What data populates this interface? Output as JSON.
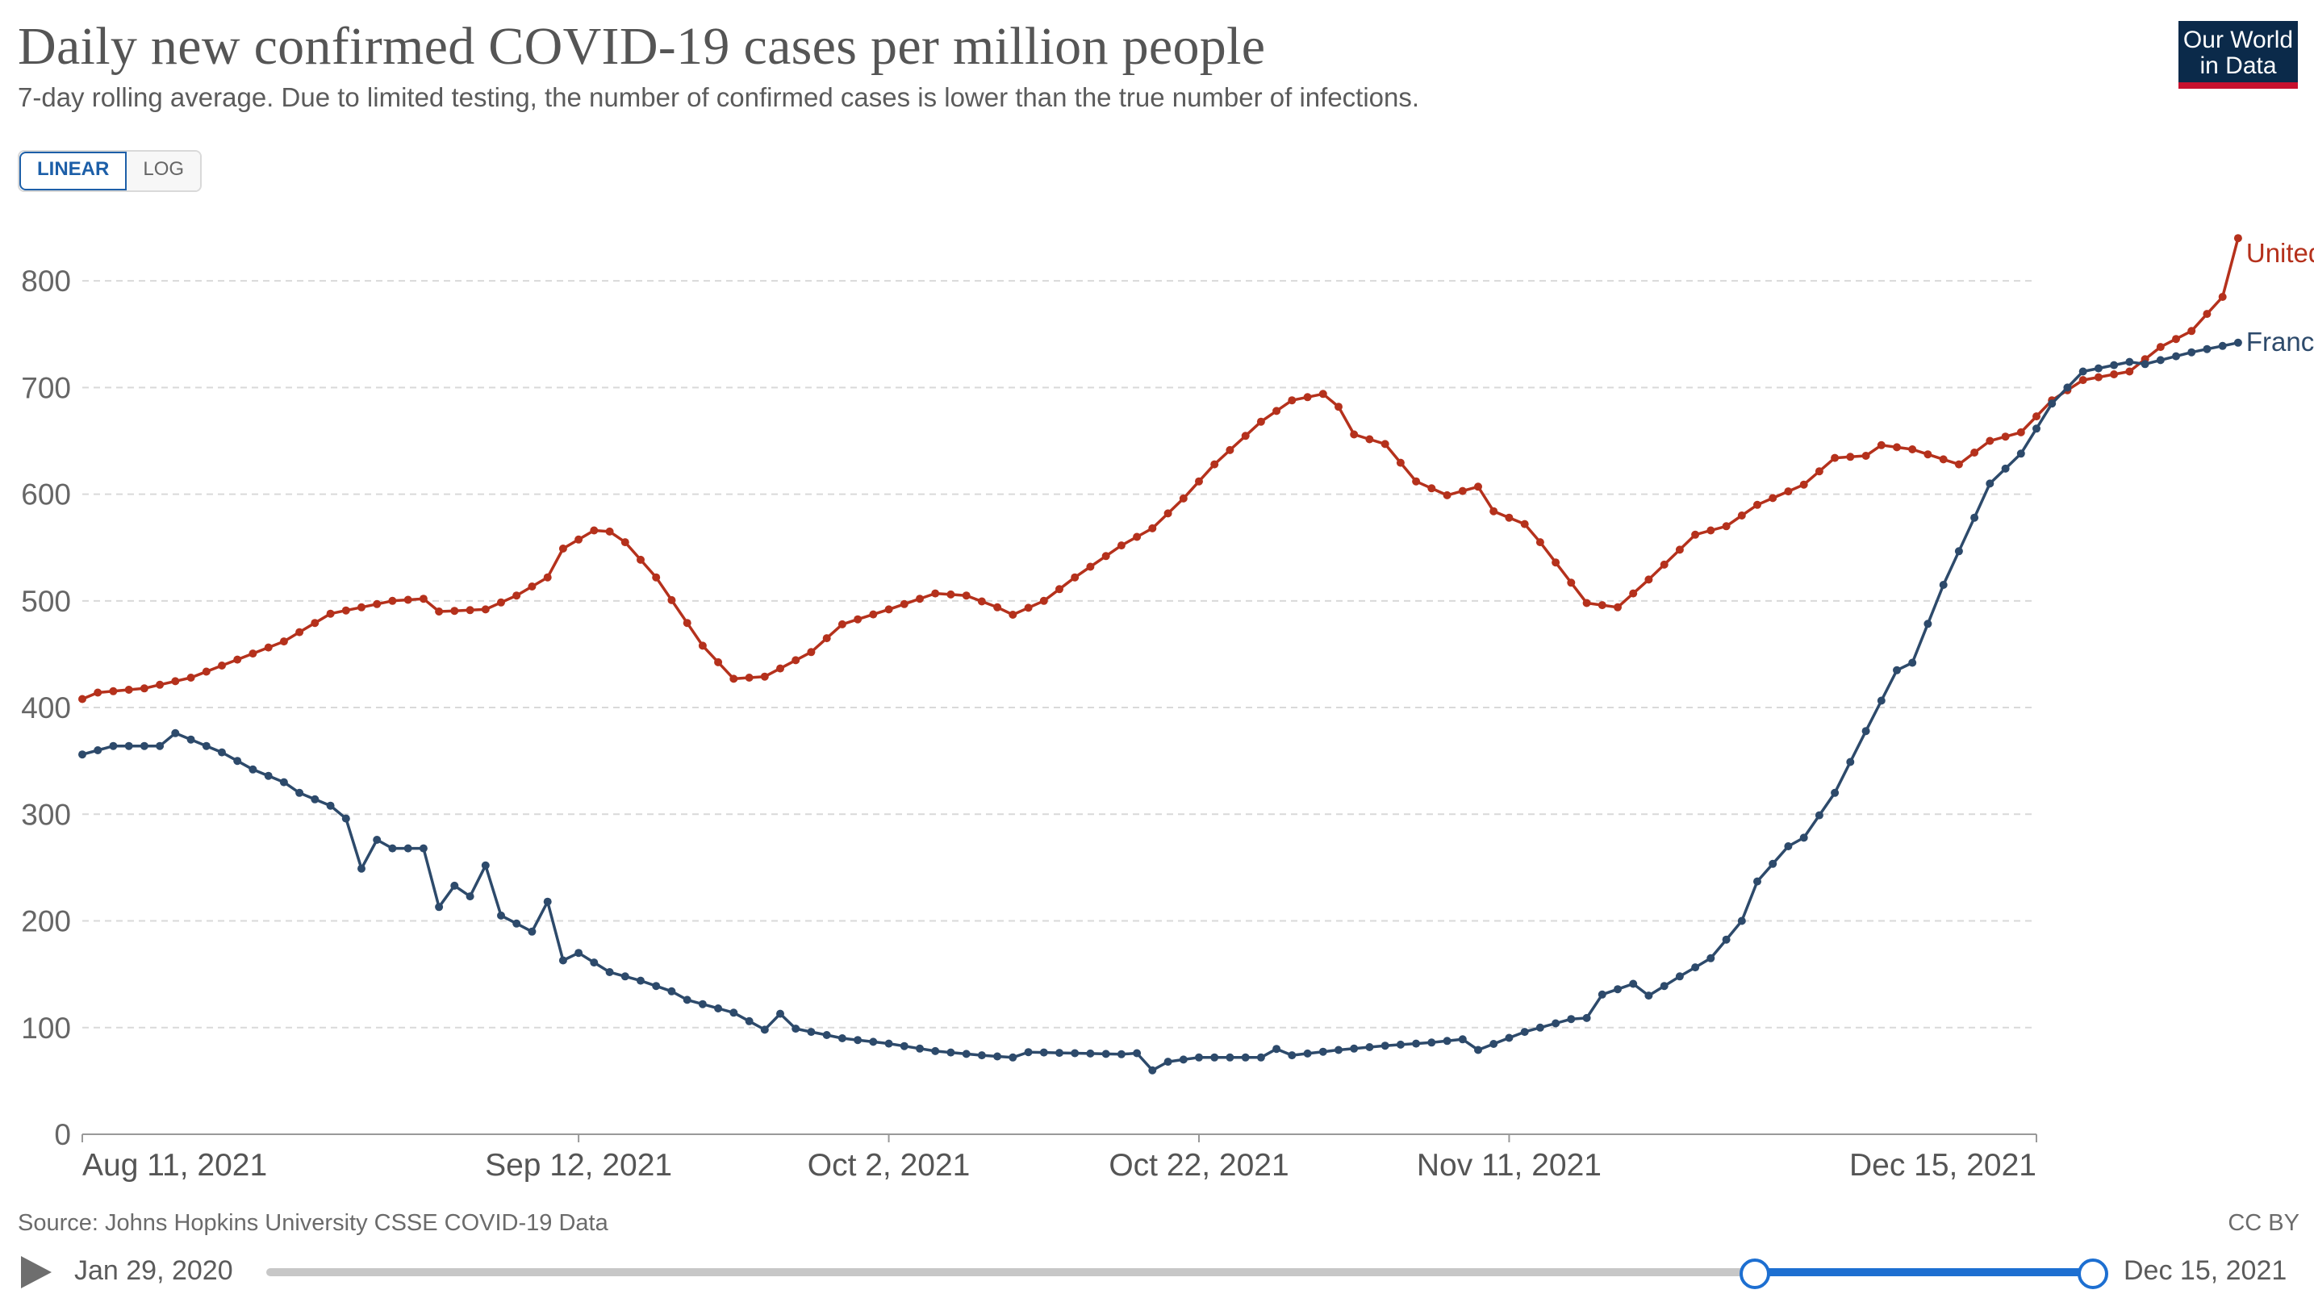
{
  "header": {
    "title": "Daily new confirmed COVID-19 cases per million people",
    "subtitle": "7-day rolling average. Due to limited testing, the number of confirmed cases is lower than the true number of infections.",
    "logo_line1": "Our World",
    "logo_line2": "in Data"
  },
  "controls": {
    "linear_label": "LINEAR",
    "log_label": "LOG",
    "active_scale": "linear"
  },
  "footer": {
    "source": "Source: Johns Hopkins University CSSE COVID-19 Data",
    "license": "CC BY"
  },
  "timeline": {
    "start_label": "Jan 29, 2020",
    "end_label": "Dec 15, 2021",
    "selection_start_fraction": 0.815,
    "selection_end_fraction": 1.0
  },
  "colors": {
    "uk": "#b5311c",
    "france": "#2d4a6b",
    "grid": "#d9d9d9",
    "slider": "#1d6fd1"
  },
  "chart_data": {
    "type": "line",
    "title": "Daily new confirmed COVID-19 cases per million people",
    "x_start": "2021-08-11",
    "x_end": "2021-12-15",
    "x_tick_labels": [
      "Aug 11, 2021",
      "Sep 12, 2021",
      "Oct 2, 2021",
      "Oct 22, 2021",
      "Nov 11, 2021",
      "Dec 15, 2021"
    ],
    "x_tick_dates": [
      "2021-08-11",
      "2021-09-12",
      "2021-10-02",
      "2021-10-22",
      "2021-11-11",
      "2021-12-15"
    ],
    "y_ticks": [
      0,
      100,
      200,
      300,
      400,
      500,
      600,
      700,
      800
    ],
    "ylim": [
      0,
      850
    ],
    "grid": true,
    "legend_placement": "line-end labels",
    "series": [
      {
        "name": "United Kingdom",
        "color": "#b5311c",
        "keyframes": [
          [
            "2021-08-11",
            408
          ],
          [
            "2021-08-12",
            414
          ],
          [
            "2021-08-15",
            418
          ],
          [
            "2021-08-18",
            428
          ],
          [
            "2021-08-21",
            445
          ],
          [
            "2021-08-24",
            462
          ],
          [
            "2021-08-27",
            488
          ],
          [
            "2021-08-31",
            500
          ],
          [
            "2021-09-02",
            502
          ],
          [
            "2021-09-03",
            490
          ],
          [
            "2021-09-06",
            492
          ],
          [
            "2021-09-08",
            505
          ],
          [
            "2021-09-10",
            522
          ],
          [
            "2021-09-11",
            549
          ],
          [
            "2021-09-13",
            566
          ],
          [
            "2021-09-14",
            565
          ],
          [
            "2021-09-15",
            555
          ],
          [
            "2021-09-17",
            522
          ],
          [
            "2021-09-20",
            458
          ],
          [
            "2021-09-22",
            427
          ],
          [
            "2021-09-24",
            429
          ],
          [
            "2021-09-27",
            452
          ],
          [
            "2021-09-29",
            478
          ],
          [
            "2021-10-02",
            492
          ],
          [
            "2021-10-05",
            507
          ],
          [
            "2021-10-07",
            505
          ],
          [
            "2021-10-09",
            494
          ],
          [
            "2021-10-10",
            487
          ],
          [
            "2021-10-12",
            500
          ],
          [
            "2021-10-14",
            522
          ],
          [
            "2021-10-17",
            552
          ],
          [
            "2021-10-19",
            568
          ],
          [
            "2021-10-21",
            596
          ],
          [
            "2021-10-23",
            628
          ],
          [
            "2021-10-26",
            668
          ],
          [
            "2021-10-28",
            688
          ],
          [
            "2021-10-30",
            694
          ],
          [
            "2021-10-31",
            682
          ],
          [
            "2021-11-01",
            656
          ],
          [
            "2021-11-03",
            647
          ],
          [
            "2021-11-05",
            612
          ],
          [
            "2021-11-07",
            599
          ],
          [
            "2021-11-09",
            607
          ],
          [
            "2021-11-10",
            584
          ],
          [
            "2021-11-12",
            572
          ],
          [
            "2021-11-13",
            555
          ],
          [
            "2021-11-16",
            498
          ],
          [
            "2021-11-18",
            494
          ],
          [
            "2021-11-20",
            520
          ],
          [
            "2021-11-23",
            562
          ],
          [
            "2021-11-25",
            570
          ],
          [
            "2021-11-27",
            590
          ],
          [
            "2021-11-30",
            609
          ],
          [
            "2021-12-02",
            634
          ],
          [
            "2021-12-04",
            636
          ],
          [
            "2021-12-05",
            646
          ],
          [
            "2021-12-07",
            642
          ],
          [
            "2021-12-10",
            628
          ],
          [
            "2021-12-12",
            650
          ],
          [
            "2021-12-14",
            658
          ],
          [
            "2021-12-16",
            688
          ],
          [
            "2021-12-18",
            707
          ],
          [
            "2021-12-21",
            715
          ],
          [
            "2021-12-23",
            738
          ],
          [
            "2021-12-25",
            753
          ],
          [
            "2021-12-27",
            785
          ],
          [
            "2021-12-28",
            840
          ]
        ]
      },
      {
        "name": "France",
        "color": "#2d4a6b",
        "keyframes": [
          [
            "2021-08-11",
            356
          ],
          [
            "2021-08-13",
            364
          ],
          [
            "2021-08-16",
            364
          ],
          [
            "2021-08-17",
            376
          ],
          [
            "2021-08-20",
            358
          ],
          [
            "2021-08-22",
            342
          ],
          [
            "2021-08-24",
            330
          ],
          [
            "2021-08-25",
            320
          ],
          [
            "2021-08-27",
            308
          ],
          [
            "2021-08-28",
            296
          ],
          [
            "2021-08-29",
            249
          ],
          [
            "2021-08-30",
            276
          ],
          [
            "2021-08-31",
            268
          ],
          [
            "2021-09-02",
            268
          ],
          [
            "2021-09-03",
            213
          ],
          [
            "2021-09-04",
            233
          ],
          [
            "2021-09-05",
            223
          ],
          [
            "2021-09-06",
            252
          ],
          [
            "2021-09-07",
            205
          ],
          [
            "2021-09-09",
            190
          ],
          [
            "2021-09-10",
            218
          ],
          [
            "2021-09-11",
            163
          ],
          [
            "2021-09-12",
            170
          ],
          [
            "2021-09-14",
            152
          ],
          [
            "2021-09-16",
            144
          ],
          [
            "2021-09-18",
            134
          ],
          [
            "2021-09-19",
            126
          ],
          [
            "2021-09-22",
            114
          ],
          [
            "2021-09-24",
            98
          ],
          [
            "2021-09-25",
            113
          ],
          [
            "2021-09-26",
            99
          ],
          [
            "2021-09-29",
            90
          ],
          [
            "2021-10-02",
            85
          ],
          [
            "2021-10-05",
            78
          ],
          [
            "2021-10-08",
            74
          ],
          [
            "2021-10-10",
            72
          ],
          [
            "2021-10-11",
            77
          ],
          [
            "2021-10-14",
            76
          ],
          [
            "2021-10-17",
            75
          ],
          [
            "2021-10-18",
            76
          ],
          [
            "2021-10-19",
            60
          ],
          [
            "2021-10-20",
            68
          ],
          [
            "2021-10-22",
            72
          ],
          [
            "2021-10-26",
            72
          ],
          [
            "2021-10-27",
            80
          ],
          [
            "2021-10-28",
            74
          ],
          [
            "2021-10-31",
            79
          ],
          [
            "2021-11-03",
            83
          ],
          [
            "2021-11-06",
            86
          ],
          [
            "2021-11-08",
            89
          ],
          [
            "2021-11-09",
            79
          ],
          [
            "2021-11-12",
            96
          ],
          [
            "2021-11-15",
            108
          ],
          [
            "2021-11-16",
            109
          ],
          [
            "2021-11-17",
            131
          ],
          [
            "2021-11-19",
            141
          ],
          [
            "2021-11-20",
            130
          ],
          [
            "2021-11-22",
            148
          ],
          [
            "2021-11-24",
            165
          ],
          [
            "2021-11-26",
            200
          ],
          [
            "2021-11-27",
            237
          ],
          [
            "2021-11-29",
            270
          ],
          [
            "2021-11-30",
            278
          ],
          [
            "2021-12-02",
            320
          ],
          [
            "2021-12-04",
            378
          ],
          [
            "2021-12-06",
            435
          ],
          [
            "2021-12-07",
            442
          ],
          [
            "2021-12-09",
            515
          ],
          [
            "2021-12-11",
            578
          ],
          [
            "2021-12-12",
            610
          ],
          [
            "2021-12-14",
            638
          ],
          [
            "2021-12-16",
            685
          ],
          [
            "2021-12-18",
            715
          ],
          [
            "2021-12-21",
            724
          ],
          [
            "2021-12-22",
            722
          ],
          [
            "2021-12-25",
            733
          ],
          [
            "2021-12-28",
            742
          ]
        ]
      }
    ]
  }
}
